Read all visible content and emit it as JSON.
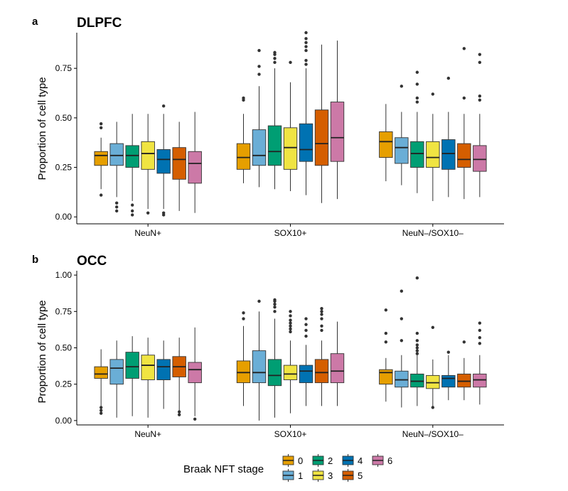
{
  "stage_colors": [
    "#E69F00",
    "#6AAED6",
    "#009E73",
    "#F0E442",
    "#0072B2",
    "#D55E00",
    "#CC79A7"
  ],
  "legend": {
    "title": "Braak NFT stage",
    "labels": [
      "0",
      "1",
      "2",
      "3",
      "4",
      "5",
      "6"
    ]
  },
  "chart_data": [
    {
      "type": "boxplot",
      "panel_label": "a",
      "title": "DLPFC",
      "ylabel": "Proportion of cell type",
      "xlabel": "",
      "ylim": [
        -0.035,
        0.93
      ],
      "yticks": [
        0.0,
        0.25,
        0.5,
        0.75
      ],
      "ytick_labels": [
        "0.00",
        "0.25",
        "0.50",
        "0.75"
      ],
      "categories": [
        "NeuN+",
        "SOX10+",
        "NeuN–/SOX10–"
      ],
      "groups": [
        [
          {
            "stage": "0",
            "whisker_low": 0.14,
            "q1": 0.26,
            "median": 0.31,
            "q3": 0.33,
            "whisker_high": 0.4,
            "outliers": [
              0.11,
              0.45,
              0.47
            ]
          },
          {
            "stage": "1",
            "whisker_low": 0.1,
            "q1": 0.26,
            "median": 0.31,
            "q3": 0.37,
            "whisker_high": 0.48,
            "outliers": [
              0.03,
              0.05,
              0.07
            ]
          },
          {
            "stage": "2",
            "whisker_low": 0.08,
            "q1": 0.25,
            "median": 0.31,
            "q3": 0.36,
            "whisker_high": 0.52,
            "outliers": [
              0.01,
              0.03,
              0.06
            ]
          },
          {
            "stage": "3",
            "whisker_low": 0.04,
            "q1": 0.24,
            "median": 0.32,
            "q3": 0.38,
            "whisker_high": 0.52,
            "outliers": [
              0.02
            ]
          },
          {
            "stage": "4",
            "whisker_low": 0.04,
            "q1": 0.22,
            "median": 0.29,
            "q3": 0.34,
            "whisker_high": 0.52,
            "outliers": [
              0.01,
              0.02,
              0.56
            ]
          },
          {
            "stage": "5",
            "whisker_low": 0.03,
            "q1": 0.19,
            "median": 0.29,
            "q3": 0.35,
            "whisker_high": 0.48,
            "outliers": []
          },
          {
            "stage": "6",
            "whisker_low": 0.02,
            "q1": 0.17,
            "median": 0.27,
            "q3": 0.33,
            "whisker_high": 0.53,
            "outliers": []
          }
        ],
        [
          {
            "stage": "0",
            "whisker_low": 0.17,
            "q1": 0.24,
            "median": 0.3,
            "q3": 0.37,
            "whisker_high": 0.52,
            "outliers": [
              0.59,
              0.6
            ]
          },
          {
            "stage": "1",
            "whisker_low": 0.15,
            "q1": 0.26,
            "median": 0.31,
            "q3": 0.44,
            "whisker_high": 0.66,
            "outliers": [
              0.72,
              0.76,
              0.84
            ]
          },
          {
            "stage": "2",
            "whisker_low": 0.14,
            "q1": 0.26,
            "median": 0.33,
            "q3": 0.46,
            "whisker_high": 0.75,
            "outliers": [
              0.78,
              0.8,
              0.82,
              0.83
            ]
          },
          {
            "stage": "3",
            "whisker_low": 0.13,
            "q1": 0.24,
            "median": 0.35,
            "q3": 0.45,
            "whisker_high": 0.68,
            "outliers": [
              0.78
            ]
          },
          {
            "stage": "4",
            "whisker_low": 0.11,
            "q1": 0.28,
            "median": 0.34,
            "q3": 0.47,
            "whisker_high": 0.75,
            "outliers": [
              0.77,
              0.79,
              0.84,
              0.86,
              0.88,
              0.9,
              0.93
            ]
          },
          {
            "stage": "5",
            "whisker_low": 0.07,
            "q1": 0.26,
            "median": 0.37,
            "q3": 0.54,
            "whisker_high": 0.87,
            "outliers": []
          },
          {
            "stage": "6",
            "whisker_low": 0.09,
            "q1": 0.28,
            "median": 0.4,
            "q3": 0.58,
            "whisker_high": 0.89,
            "outliers": []
          }
        ],
        [
          {
            "stage": "0",
            "whisker_low": 0.18,
            "q1": 0.3,
            "median": 0.38,
            "q3": 0.43,
            "whisker_high": 0.57,
            "outliers": []
          },
          {
            "stage": "1",
            "whisker_low": 0.16,
            "q1": 0.27,
            "median": 0.35,
            "q3": 0.4,
            "whisker_high": 0.53,
            "outliers": [
              0.66
            ]
          },
          {
            "stage": "2",
            "whisker_low": 0.12,
            "q1": 0.25,
            "median": 0.32,
            "q3": 0.38,
            "whisker_high": 0.53,
            "outliers": [
              0.58,
              0.6,
              0.67,
              0.73
            ]
          },
          {
            "stage": "3",
            "whisker_low": 0.08,
            "q1": 0.25,
            "median": 0.3,
            "q3": 0.38,
            "whisker_high": 0.52,
            "outliers": [
              0.62
            ]
          },
          {
            "stage": "4",
            "whisker_low": 0.1,
            "q1": 0.24,
            "median": 0.32,
            "q3": 0.39,
            "whisker_high": 0.53,
            "outliers": [
              0.7
            ]
          },
          {
            "stage": "5",
            "whisker_low": 0.09,
            "q1": 0.25,
            "median": 0.29,
            "q3": 0.37,
            "whisker_high": 0.52,
            "outliers": [
              0.6,
              0.85
            ]
          },
          {
            "stage": "6",
            "whisker_low": 0.1,
            "q1": 0.23,
            "median": 0.29,
            "q3": 0.36,
            "whisker_high": 0.52,
            "outliers": [
              0.59,
              0.61,
              0.78,
              0.82
            ]
          }
        ]
      ]
    },
    {
      "type": "boxplot",
      "panel_label": "b",
      "title": "OCC",
      "ylabel": "Proportion of cell type",
      "xlabel": "",
      "ylim": [
        -0.03,
        1.03
      ],
      "yticks": [
        0.0,
        0.25,
        0.5,
        0.75,
        1.0
      ],
      "ytick_labels": [
        "0.00",
        "0.25",
        "0.50",
        "0.75",
        "1.00"
      ],
      "categories": [
        "NeuN+",
        "SOX10+",
        "NeuN–/SOX10–"
      ],
      "groups": [
        [
          {
            "stage": "0",
            "whisker_low": 0.1,
            "q1": 0.29,
            "median": 0.32,
            "q3": 0.37,
            "whisker_high": 0.49,
            "outliers": [
              0.05,
              0.07,
              0.09
            ]
          },
          {
            "stage": "1",
            "whisker_low": 0.02,
            "q1": 0.25,
            "median": 0.36,
            "q3": 0.42,
            "whisker_high": 0.55,
            "outliers": []
          },
          {
            "stage": "2",
            "whisker_low": 0.03,
            "q1": 0.29,
            "median": 0.37,
            "q3": 0.47,
            "whisker_high": 0.58,
            "outliers": []
          },
          {
            "stage": "3",
            "whisker_low": 0.02,
            "q1": 0.28,
            "median": 0.38,
            "q3": 0.45,
            "whisker_high": 0.57,
            "outliers": []
          },
          {
            "stage": "4",
            "whisker_low": 0.08,
            "q1": 0.28,
            "median": 0.37,
            "q3": 0.42,
            "whisker_high": 0.55,
            "outliers": []
          },
          {
            "stage": "5",
            "whisker_low": 0.07,
            "q1": 0.3,
            "median": 0.37,
            "q3": 0.44,
            "whisker_high": 0.57,
            "outliers": [
              0.04,
              0.06
            ]
          },
          {
            "stage": "6",
            "whisker_low": 0.03,
            "q1": 0.26,
            "median": 0.35,
            "q3": 0.4,
            "whisker_high": 0.64,
            "outliers": [
              0.01
            ]
          }
        ],
        [
          {
            "stage": "0",
            "whisker_low": 0.1,
            "q1": 0.26,
            "median": 0.33,
            "q3": 0.41,
            "whisker_high": 0.65,
            "outliers": [
              0.7,
              0.74
            ]
          },
          {
            "stage": "1",
            "whisker_low": 0.0,
            "q1": 0.26,
            "median": 0.33,
            "q3": 0.48,
            "whisker_high": 0.75,
            "outliers": [
              0.82
            ]
          },
          {
            "stage": "2",
            "whisker_low": 0.02,
            "q1": 0.24,
            "median": 0.31,
            "q3": 0.42,
            "whisker_high": 0.7,
            "outliers": [
              0.75,
              0.78,
              0.8,
              0.82,
              0.83
            ]
          },
          {
            "stage": "3",
            "whisker_low": 0.05,
            "q1": 0.28,
            "median": 0.32,
            "q3": 0.38,
            "whisker_high": 0.55,
            "outliers": [
              0.61,
              0.63,
              0.65,
              0.67,
              0.69,
              0.72,
              0.75
            ]
          },
          {
            "stage": "4",
            "whisker_low": 0.1,
            "q1": 0.26,
            "median": 0.34,
            "q3": 0.38,
            "whisker_high": 0.52,
            "outliers": [
              0.58,
              0.62,
              0.66,
              0.7
            ]
          },
          {
            "stage": "5",
            "whisker_low": 0.1,
            "q1": 0.26,
            "median": 0.33,
            "q3": 0.42,
            "whisker_high": 0.55,
            "outliers": [
              0.62,
              0.65,
              0.7,
              0.73,
              0.75,
              0.77
            ]
          },
          {
            "stage": "6",
            "whisker_low": 0.1,
            "q1": 0.26,
            "median": 0.34,
            "q3": 0.46,
            "whisker_high": 0.68,
            "outliers": []
          }
        ],
        [
          {
            "stage": "0",
            "whisker_low": 0.13,
            "q1": 0.25,
            "median": 0.33,
            "q3": 0.35,
            "whisker_high": 0.43,
            "outliers": [
              0.54,
              0.6,
              0.76
            ]
          },
          {
            "stage": "1",
            "whisker_low": 0.09,
            "q1": 0.23,
            "median": 0.28,
            "q3": 0.34,
            "whisker_high": 0.45,
            "outliers": [
              0.55,
              0.7,
              0.89
            ]
          },
          {
            "stage": "2",
            "whisker_low": 0.1,
            "q1": 0.23,
            "median": 0.27,
            "q3": 0.32,
            "whisker_high": 0.45,
            "outliers": [
              0.46,
              0.48,
              0.5,
              0.52,
              0.55,
              0.6,
              0.98
            ]
          },
          {
            "stage": "3",
            "whisker_low": 0.09,
            "q1": 0.22,
            "median": 0.26,
            "q3": 0.31,
            "whisker_high": 0.42,
            "outliers": [
              0.09,
              0.64
            ]
          },
          {
            "stage": "4",
            "whisker_low": 0.14,
            "q1": 0.23,
            "median": 0.29,
            "q3": 0.31,
            "whisker_high": 0.45,
            "outliers": [
              0.47
            ]
          },
          {
            "stage": "5",
            "whisker_low": 0.14,
            "q1": 0.23,
            "median": 0.27,
            "q3": 0.32,
            "whisker_high": 0.43,
            "outliers": [
              0.54
            ]
          },
          {
            "stage": "6",
            "whisker_low": 0.11,
            "q1": 0.23,
            "median": 0.28,
            "q3": 0.32,
            "whisker_high": 0.45,
            "outliers": [
              0.53,
              0.57,
              0.62,
              0.67
            ]
          }
        ]
      ]
    }
  ]
}
